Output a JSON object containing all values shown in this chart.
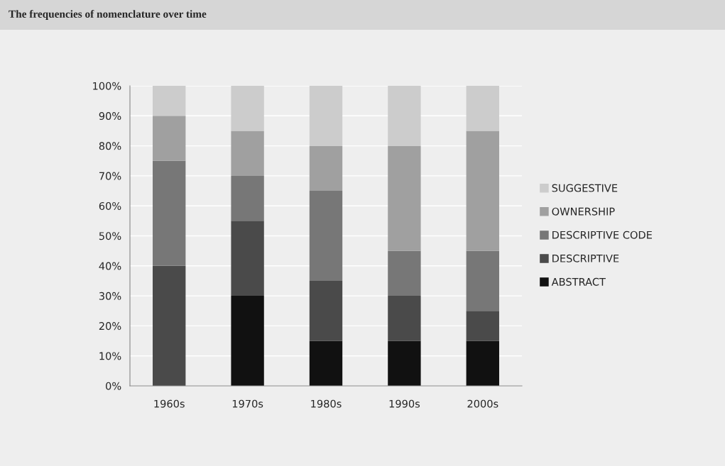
{
  "chart_data": {
    "type": "bar",
    "title": "The frequencies of nomenclature over time",
    "categories": [
      "1960s",
      "1970s",
      "1980s",
      "1990s",
      "2000s"
    ],
    "stacked": true,
    "series": [
      {
        "name": "ABSTRACT",
        "color": "#111111",
        "values": [
          0,
          30,
          15,
          15,
          15
        ]
      },
      {
        "name": "DESCRIPTIVE",
        "color": "#4a4a4a",
        "values": [
          40,
          25,
          20,
          15,
          10
        ]
      },
      {
        "name": "DESCRIPTIVE CODE",
        "color": "#777777",
        "values": [
          35,
          15,
          30,
          15,
          20
        ]
      },
      {
        "name": "OWNERSHIP",
        "color": "#a0a0a0",
        "values": [
          15,
          15,
          15,
          35,
          40
        ]
      },
      {
        "name": "SUGGESTIVE",
        "color": "#cccccc",
        "values": [
          10,
          15,
          20,
          20,
          15
        ]
      }
    ],
    "ylim": [
      0,
      100
    ],
    "yticks": [
      {
        "value": 0,
        "label": "0%"
      },
      {
        "value": 10,
        "label": "10%"
      },
      {
        "value": 20,
        "label": "20%"
      },
      {
        "value": 30,
        "label": "30%"
      },
      {
        "value": 40,
        "label": "40%"
      },
      {
        "value": 50,
        "label": "50%"
      },
      {
        "value": 60,
        "label": "60%"
      },
      {
        "value": 70,
        "label": "70%"
      },
      {
        "value": 80,
        "label": "80%"
      },
      {
        "value": 90,
        "label": "90%"
      },
      {
        "value": 100,
        "label": "100%"
      }
    ],
    "grid": "y",
    "legend": "right"
  }
}
